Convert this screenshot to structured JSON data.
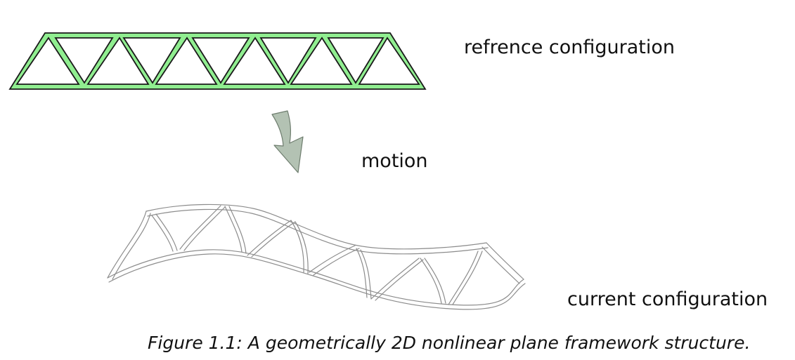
{
  "labels": {
    "reference": "refrence configuration",
    "motion": "motion",
    "current": "current configuration"
  },
  "caption": "Figure 1.1: A geometrically 2D nonlinear plane framework structure.",
  "colors": {
    "reference_fill": "#90ee90",
    "reference_stroke": "#1a1a1a",
    "arrow_fill": "#b3c2b3",
    "arrow_stroke": "#6e7d6e",
    "deformed_stroke": "#8c8c8c"
  },
  "icons": {
    "motion_arrow": "curved-down-arrow"
  }
}
